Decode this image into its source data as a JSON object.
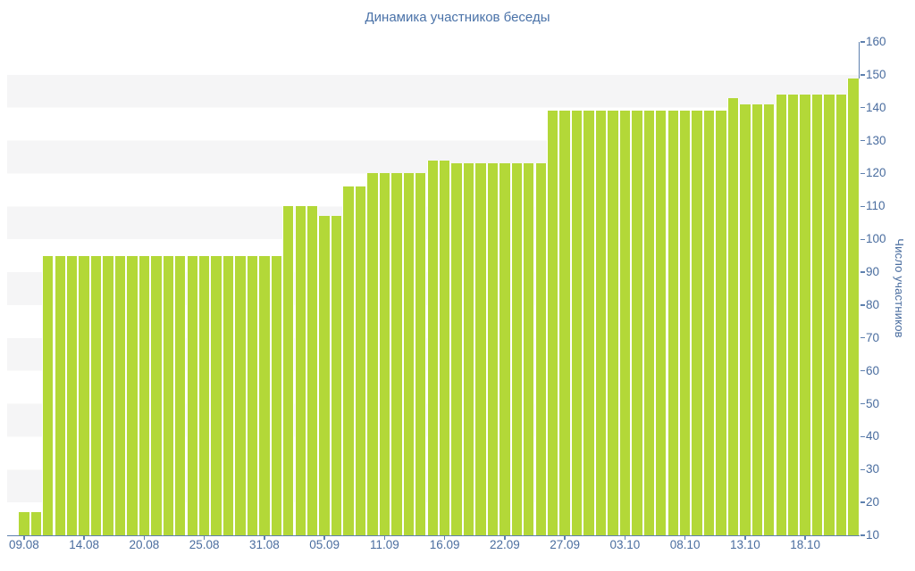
{
  "title": "Динамика участников беседы",
  "colors": {
    "bar": "#b3d838",
    "band": "#f5f5f6",
    "axis_line": "#5e80ae",
    "tick_text": "#4a6d9f",
    "title_text": "#4a72a8",
    "background": "#ffffff"
  },
  "chart_data": {
    "type": "bar",
    "title": "Динамика участников беседы",
    "xlabel": "",
    "ylabel": "Число участников",
    "ylim": [
      10,
      160
    ],
    "ytick_step": 10,
    "yticks": [
      10,
      20,
      30,
      40,
      50,
      60,
      70,
      80,
      90,
      100,
      110,
      120,
      130,
      140,
      150,
      160
    ],
    "y_axis_side": "right",
    "grid": "alternating horizontal bands (white / light gray), no gridlines",
    "legend": null,
    "xticks": [
      {
        "label": "09.08",
        "bar_index": 0
      },
      {
        "label": "14.08",
        "bar_index": 5
      },
      {
        "label": "20.08",
        "bar_index": 10
      },
      {
        "label": "25.08",
        "bar_index": 15
      },
      {
        "label": "31.08",
        "bar_index": 20
      },
      {
        "label": "05.09",
        "bar_index": 25
      },
      {
        "label": "11.09",
        "bar_index": 30
      },
      {
        "label": "16.09",
        "bar_index": 35
      },
      {
        "label": "22.09",
        "bar_index": 40
      },
      {
        "label": "27.09",
        "bar_index": 45
      },
      {
        "label": "03.10",
        "bar_index": 50
      },
      {
        "label": "08.10",
        "bar_index": 55
      },
      {
        "label": "13.10",
        "bar_index": 60
      },
      {
        "label": "18.10",
        "bar_index": 65
      }
    ],
    "values": [
      17,
      17,
      95,
      95,
      95,
      95,
      95,
      95,
      95,
      95,
      95,
      95,
      95,
      95,
      95,
      95,
      95,
      95,
      95,
      95,
      95,
      95,
      110,
      110,
      110,
      107,
      107,
      116,
      116,
      120,
      120,
      120,
      120,
      120,
      124,
      124,
      123,
      123,
      123,
      123,
      123,
      123,
      123,
      123,
      139,
      139,
      139,
      139,
      139,
      139,
      139,
      139,
      139,
      139,
      139,
      139,
      139,
      139,
      139,
      143,
      141,
      141,
      141,
      144,
      144,
      144,
      144,
      144,
      144,
      149
    ]
  }
}
